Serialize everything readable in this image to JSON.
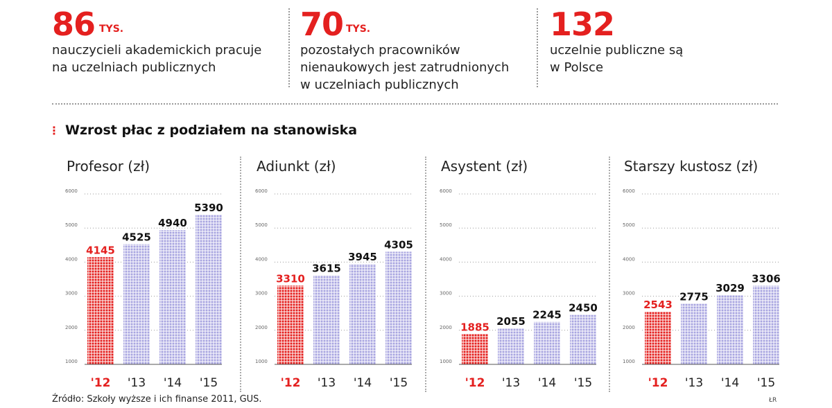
{
  "stats": [
    {
      "number": "86",
      "unit": "TYS.",
      "text": "nauczycieli akademickich pracuje\nna uczelniach publicznych"
    },
    {
      "number": "70",
      "unit": "TYS.",
      "text": "pozostałych pracowników\nnienaukowych jest zatrudnionych\nw uczelniach publicznych"
    },
    {
      "number": "132",
      "unit": "",
      "text": "uczelnie publiczne są\nw Polsce"
    }
  ],
  "section_title": "Wzrost płac z podziałem na stanowiska",
  "source": "Źródło: Szkoły wyższe i ich finanse 2011, GUS.",
  "credit": "ŁR",
  "colors": {
    "accent": "#e4201f",
    "bar": "#a8a5e0",
    "text": "#222222"
  },
  "chart_data": [
    {
      "type": "bar",
      "title": "Profesor (zł)",
      "categories": [
        "'12",
        "'13",
        "'14",
        "'15"
      ],
      "values": [
        4145,
        4525,
        4940,
        5390
      ],
      "labels": [
        "4145",
        "4525",
        "4940",
        "5390"
      ],
      "yticks": [
        "1000",
        "2000",
        "3000",
        "4000",
        "5000",
        "6000"
      ],
      "ylim": [
        1000,
        6000
      ]
    },
    {
      "type": "bar",
      "title": "Adiunkt  (zł)",
      "categories": [
        "'12",
        "'13",
        "'14",
        "'15"
      ],
      "values": [
        3310,
        3615,
        3945,
        4305
      ],
      "labels": [
        "3310",
        "3615",
        "3945",
        "4305"
      ],
      "yticks": [
        "1000",
        "2000",
        "3000",
        "4000",
        "5000",
        "6000"
      ],
      "ylim": [
        1000,
        6000
      ]
    },
    {
      "type": "bar",
      "title": "Asystent (zł)",
      "categories": [
        "'12",
        "'13",
        "'14",
        "'15"
      ],
      "values": [
        1885,
        2055,
        2245,
        2450
      ],
      "labels": [
        "1885",
        "2055",
        "2245",
        "2450"
      ],
      "yticks": [
        "1000",
        "2000",
        "3000",
        "4000",
        "5000",
        "6000"
      ],
      "ylim": [
        1000,
        6000
      ]
    },
    {
      "type": "bar",
      "title": "Starszy kustosz (zł)",
      "categories": [
        "'12",
        "'13",
        "'14",
        "'15"
      ],
      "values": [
        2543,
        2775,
        3029,
        3306
      ],
      "labels": [
        "2543",
        "2775",
        "3029",
        "3306"
      ],
      "yticks": [
        "1000",
        "2000",
        "3000",
        "4000",
        "5000",
        "6000"
      ],
      "ylim": [
        1000,
        6000
      ]
    }
  ]
}
